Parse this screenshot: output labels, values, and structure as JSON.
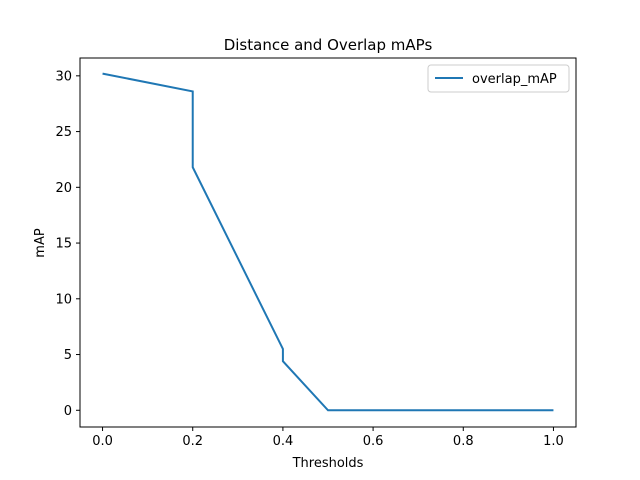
{
  "chart_data": {
    "type": "line",
    "title": "Distance and Overlap mAPs",
    "xlabel": "Thresholds",
    "ylabel": "mAP",
    "xlim": [
      -0.05,
      1.05
    ],
    "ylim": [
      -1.5,
      31.6
    ],
    "xticks": [
      0.0,
      0.2,
      0.4,
      0.6,
      0.8,
      1.0
    ],
    "xtick_labels": [
      "0.0",
      "0.2",
      "0.4",
      "0.6",
      "0.8",
      "1.0"
    ],
    "yticks": [
      0,
      5,
      10,
      15,
      20,
      25,
      30
    ],
    "ytick_labels": [
      "0",
      "5",
      "10",
      "15",
      "20",
      "25",
      "30"
    ],
    "grid": false,
    "legend": "top-right",
    "series": [
      {
        "name": "overlap_mAP",
        "color": "#1f77b4",
        "x": [
          0.0,
          0.2,
          0.2,
          0.4,
          0.4,
          0.5,
          1.0
        ],
        "y": [
          30.2,
          28.6,
          21.8,
          5.5,
          4.4,
          0.0,
          0.0
        ]
      }
    ]
  }
}
